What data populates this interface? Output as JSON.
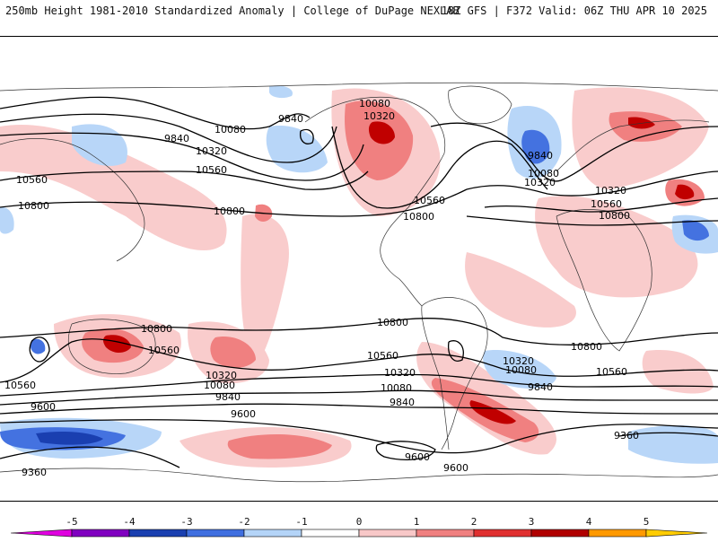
{
  "header": {
    "left": "250mb Height 1981-2010 Standardized Anomaly | College of DuPage NEXLAB",
    "right": "18Z GFS | F372 Valid: 06Z THU APR 10 2025"
  },
  "colorbar": {
    "ticks": [
      "-5",
      "-4",
      "-3",
      "-2",
      "-1",
      "0",
      "1",
      "2",
      "3",
      "4",
      "5"
    ],
    "colors": [
      "#e000e0",
      "#8000c0",
      "#1a3fb0",
      "#3f6fe0",
      "#b4d4f8",
      "#ffffff",
      "#f8c8c8",
      "#f08080",
      "#e03030",
      "#b00000",
      "#ff9900",
      "#ffcc00"
    ]
  },
  "contour_labels": [
    {
      "text": "10080"
    },
    {
      "text": "10320"
    },
    {
      "text": "9840"
    },
    {
      "text": "9840"
    },
    {
      "text": "10080"
    },
    {
      "text": "10320"
    },
    {
      "text": "10560"
    },
    {
      "text": "10560"
    },
    {
      "text": "10800"
    },
    {
      "text": "10800"
    },
    {
      "text": "10560"
    },
    {
      "text": "10800"
    },
    {
      "text": "9840"
    },
    {
      "text": "10080"
    },
    {
      "text": "10320"
    },
    {
      "text": "10320"
    },
    {
      "text": "10560"
    },
    {
      "text": "10800"
    },
    {
      "text": "10800"
    },
    {
      "text": "10800"
    },
    {
      "text": "10560"
    },
    {
      "text": "10320"
    },
    {
      "text": "10080"
    },
    {
      "text": "9840"
    },
    {
      "text": "9600"
    },
    {
      "text": "9600"
    },
    {
      "text": "9360"
    },
    {
      "text": "10560"
    },
    {
      "text": "10320"
    },
    {
      "text": "10080"
    },
    {
      "text": "9840"
    },
    {
      "text": "9600"
    },
    {
      "text": "9600"
    },
    {
      "text": "9360"
    },
    {
      "text": "10320"
    },
    {
      "text": "10080"
    },
    {
      "text": "9840"
    },
    {
      "text": "10800"
    },
    {
      "text": "10560"
    },
    {
      "text": "10560"
    }
  ]
}
